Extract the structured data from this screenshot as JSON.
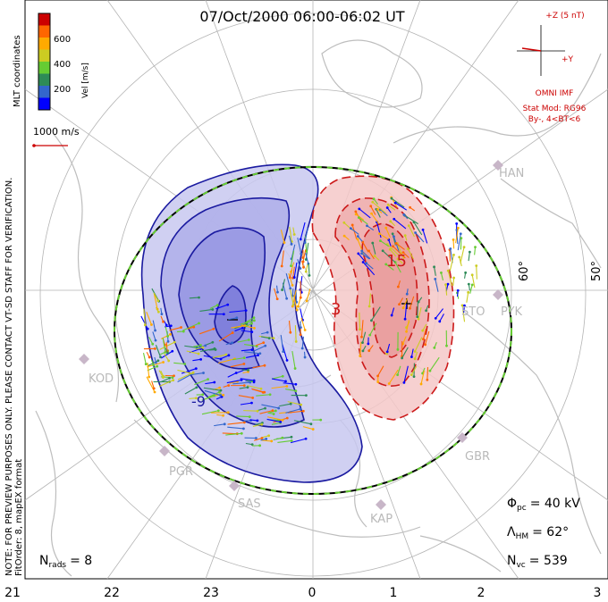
{
  "title": "07/Oct/2000 06:00-06:02 UT",
  "colorbar": {
    "unit_label": "Vel [m/s]",
    "ticks": [
      "600",
      "400",
      "200"
    ],
    "colors": [
      "#cc0000",
      "#ff6600",
      "#ffaa00",
      "#cccc22",
      "#66cc33",
      "#2e8b57",
      "#3366cc",
      "#0000ff"
    ]
  },
  "coordinates_label": "MLT coordinates",
  "scale_label": "1000 m/s",
  "watermark": "NOTE: FOR PREVIEW PURPOSES ONLY. PLEASE CONTACT VT-SD STAFF FOR VERIFICATION.",
  "fit_order": "FitOrder: 8, mapEX format",
  "imf": {
    "z_label": "+Z (5 nT)",
    "y_label": "+Y",
    "source": "OMNI IMF",
    "stat_mod": "Stat Mod: RG96",
    "condition": "By-, 4<BT<6"
  },
  "latitude_labels": [
    "60°",
    "50°"
  ],
  "stations": [
    {
      "name": "HAN"
    },
    {
      "name": "STO"
    },
    {
      "name": "PYK"
    },
    {
      "name": "KOD"
    },
    {
      "name": "PGR"
    },
    {
      "name": "SAS"
    },
    {
      "name": "KAP"
    },
    {
      "name": "GBR"
    }
  ],
  "contours": {
    "neg_label": "-9",
    "pos_label": "3",
    "pos_label_2": "15"
  },
  "stats": {
    "n_rads_label": "N",
    "n_rads_sub": "rads",
    "n_rads_value": "= 8",
    "phi_label": "Φ",
    "phi_sub": "pc",
    "phi_value": "= 40 kV",
    "lambda_label": "Λ",
    "lambda_sub": "HM",
    "lambda_value": "= 62°",
    "nvc_label": "N",
    "nvc_sub": "vc",
    "nvc_value": "= 539"
  },
  "mlt_axis": [
    "21",
    "22",
    "23",
    "0",
    "1",
    "2",
    "3"
  ],
  "colors": {
    "neg_fill": "#c8c8f0",
    "neg_line": "#1a1aa0",
    "pos_fill": "#f5c8c8",
    "pos_line": "#cc1a1a",
    "boundary_dash": "#66cc33",
    "grid": "#b4b4b4",
    "coast": "#bdbdbd",
    "station": "#c8b6c8",
    "imf_text": "#cc0000"
  }
}
